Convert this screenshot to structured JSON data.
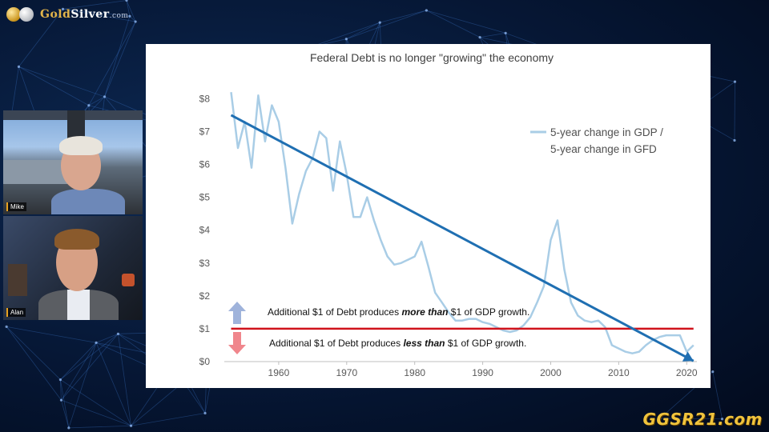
{
  "brand": {
    "logo_gold": "Gold",
    "logo_silver": "Silver",
    "logo_suffix": ".com",
    "watermark": "GGSR21.com"
  },
  "participants": [
    {
      "name": "Mike"
    },
    {
      "name": "Alan"
    }
  ],
  "colors": {
    "trend_line": "#1f6fb2",
    "series_line": "#a9cde6",
    "threshold_line": "#d0121b",
    "arrow_up": "#9fb3db",
    "arrow_down": "#f0868c"
  },
  "chart_data": {
    "type": "line",
    "title": "Federal Debt is no longer \"growing\" the economy",
    "xlabel": "",
    "ylabel": "",
    "xlim": [
      1952,
      2021.5
    ],
    "ylim": [
      0,
      8.4
    ],
    "x_ticks": [
      1960,
      1970,
      1980,
      1990,
      2000,
      2010,
      2020
    ],
    "x_tick_labels": [
      "1960",
      "1970",
      "1980",
      "1990",
      "2000",
      "2010",
      "2020"
    ],
    "y_ticks": [
      0,
      1,
      2,
      3,
      4,
      5,
      6,
      7,
      8
    ],
    "y_tick_labels": [
      "$0",
      "$1",
      "$2",
      "$3",
      "$4",
      "$5",
      "$6",
      "$7",
      "$8"
    ],
    "legend": {
      "label_line1": "5-year change in GDP /",
      "label_line2": "5-year change in GFD",
      "position": "upper-right"
    },
    "series": [
      {
        "name": "5-year change in GDP / 5-year change in GFD",
        "x": [
          1953,
          1954,
          1955,
          1956,
          1957,
          1958,
          1959,
          1960,
          1961,
          1962,
          1963,
          1964,
          1965,
          1966,
          1967,
          1968,
          1969,
          1970,
          1971,
          1972,
          1973,
          1974,
          1975,
          1976,
          1977,
          1978,
          1979,
          1980,
          1981,
          1982,
          1983,
          1984,
          1985,
          1986,
          1987,
          1988,
          1989,
          1990,
          1991,
          1992,
          1993,
          1994,
          1995,
          1996,
          1997,
          1998,
          1999,
          2000,
          2001,
          2002,
          2003,
          2004,
          2005,
          2006,
          2007,
          2008,
          2009,
          2010,
          2011,
          2012,
          2013,
          2014,
          2015,
          2016,
          2017,
          2018,
          2019,
          2020,
          2021
        ],
        "values": [
          8.2,
          6.5,
          7.3,
          5.9,
          8.1,
          6.7,
          7.8,
          7.3,
          5.9,
          4.2,
          5.1,
          5.8,
          6.2,
          7.0,
          6.8,
          5.2,
          6.7,
          5.7,
          4.4,
          4.4,
          5.0,
          4.3,
          3.7,
          3.2,
          2.95,
          3.0,
          3.1,
          3.2,
          3.65,
          2.9,
          2.1,
          1.8,
          1.5,
          1.25,
          1.25,
          1.3,
          1.3,
          1.2,
          1.15,
          1.05,
          0.95,
          0.9,
          0.95,
          1.1,
          1.35,
          1.8,
          2.3,
          3.7,
          4.3,
          2.8,
          1.8,
          1.4,
          1.25,
          1.2,
          1.25,
          1.05,
          0.5,
          0.4,
          0.3,
          0.25,
          0.3,
          0.5,
          0.65,
          0.75,
          0.8,
          0.8,
          0.8,
          0.3,
          0.5
        ]
      },
      {
        "name": "Trend",
        "x": [
          1953,
          2021
        ],
        "values": [
          7.5,
          0.02
        ]
      },
      {
        "name": "Breakeven $1",
        "x": [
          1953,
          2021
        ],
        "values": [
          1.0,
          1.0
        ]
      }
    ],
    "annotations": {
      "above_prefix": "Additional $1 of Debt produces ",
      "above_emph": "more than",
      "above_suffix": " $1 of GDP growth.",
      "below_prefix": "Additional $1 of Debt produces ",
      "below_emph": "less than",
      "below_suffix": " $1 of GDP growth."
    }
  }
}
